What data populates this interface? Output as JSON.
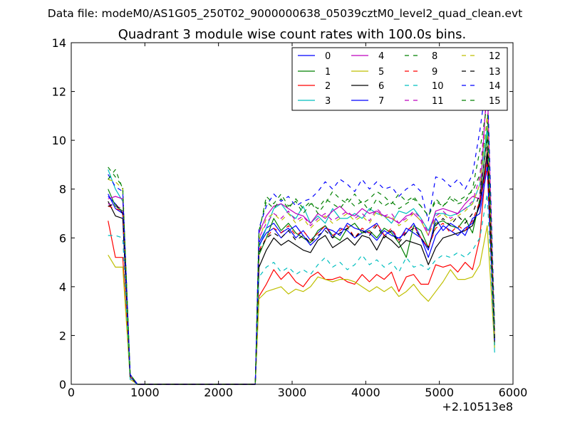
{
  "header": {
    "datafile": "Data file: modeM0/AS1G05_250T02_9000000638_05039cztM0_level2_quad_clean.evt",
    "title": "Quadrant 3 module wise count rates with 100.0s bins."
  },
  "chart_data": {
    "type": "line",
    "title": "Quadrant 3 module wise count rates with 100.0s bins.",
    "xlabel": "",
    "ylabel": "",
    "x_offset_label": "+2.10513e8",
    "xlim": [
      0,
      6000
    ],
    "ylim": [
      0,
      14
    ],
    "xticks": [
      0,
      1000,
      2000,
      3000,
      4000,
      5000,
      6000
    ],
    "yticks": [
      0,
      2,
      4,
      6,
      8,
      10,
      12,
      14
    ],
    "xtick_labels": [
      "0",
      "1000",
      "2000",
      "3000",
      "4000",
      "5000",
      "6000"
    ],
    "ytick_labels": [
      "0",
      "2",
      "4",
      "6",
      "8",
      "10",
      "12",
      "14"
    ],
    "grid": false,
    "legend": "top-right",
    "x": [
      500,
      600,
      700,
      800,
      900,
      1000,
      1100,
      1200,
      1300,
      1400,
      1500,
      1600,
      1700,
      1800,
      1900,
      2000,
      2100,
      2200,
      2300,
      2400,
      2500,
      2550,
      2650,
      2750,
      2850,
      2950,
      3050,
      3150,
      3250,
      3350,
      3450,
      3550,
      3650,
      3750,
      3850,
      3950,
      4050,
      4150,
      4250,
      4350,
      4450,
      4550,
      4650,
      4750,
      4850,
      4950,
      5050,
      5150,
      5250,
      5350,
      5450,
      5550,
      5650,
      5750
    ],
    "series": [
      {
        "name": "0",
        "color": "#0000ff",
        "dash": false,
        "values": [
          7.7,
          7.4,
          7.0,
          0.4,
          0,
          0,
          0,
          0,
          0,
          0,
          0,
          0,
          0,
          0,
          0,
          0,
          0,
          0,
          0,
          0,
          0,
          5.8,
          6.4,
          6.6,
          6.2,
          6.4,
          6.0,
          6.3,
          5.9,
          6.2,
          6.5,
          6.0,
          6.4,
          6.3,
          6.0,
          6.2,
          6.4,
          6.6,
          6.1,
          6.3,
          5.9,
          6.4,
          6.2,
          6.0,
          5.2,
          6.1,
          6.5,
          6.3,
          6.1,
          6.4,
          6.6,
          7.3,
          9.2,
          1.8
        ]
      },
      {
        "name": "1",
        "color": "#008000",
        "dash": false,
        "values": [
          8.0,
          7.3,
          7.1,
          0.3,
          0,
          0,
          0,
          0,
          0,
          0,
          0,
          0,
          0,
          0,
          0,
          0,
          0,
          0,
          0,
          0,
          0,
          5.3,
          6.0,
          6.8,
          6.3,
          6.6,
          6.2,
          6.0,
          5.8,
          6.3,
          6.5,
          6.1,
          5.9,
          6.4,
          6.6,
          6.2,
          6.3,
          6.0,
          6.4,
          6.2,
          5.8,
          5.2,
          6.5,
          6.3,
          5.6,
          6.6,
          6.7,
          6.5,
          6.4,
          6.8,
          6.2,
          7.6,
          10.2,
          1.9
        ]
      },
      {
        "name": "2",
        "color": "#ff0000",
        "dash": false,
        "values": [
          6.7,
          5.2,
          5.2,
          0.3,
          0,
          0,
          0,
          0,
          0,
          0,
          0,
          0,
          0,
          0,
          0,
          0,
          0,
          0,
          0,
          0,
          0,
          3.6,
          4.1,
          4.7,
          4.3,
          4.6,
          4.2,
          4.0,
          4.4,
          4.6,
          4.3,
          4.3,
          4.4,
          4.2,
          4.1,
          4.5,
          4.2,
          4.5,
          4.3,
          4.6,
          3.8,
          4.4,
          4.5,
          4.1,
          4.1,
          4.9,
          4.8,
          4.9,
          4.6,
          5.0,
          4.7,
          6.0,
          9.6,
          1.6
        ]
      },
      {
        "name": "3",
        "color": "#00bfbf",
        "dash": false,
        "values": [
          8.8,
          8.0,
          7.5,
          0.4,
          0,
          0,
          0,
          0,
          0,
          0,
          0,
          0,
          0,
          0,
          0,
          0,
          0,
          0,
          0,
          0,
          0,
          5.6,
          6.4,
          7.2,
          7.4,
          7.0,
          6.8,
          7.3,
          6.6,
          6.9,
          6.6,
          7.2,
          6.8,
          6.8,
          7.0,
          6.8,
          7.2,
          7.0,
          6.9,
          6.6,
          7.1,
          7.0,
          7.2,
          6.8,
          6.3,
          7.0,
          7.0,
          6.9,
          7.0,
          7.2,
          7.4,
          8.2,
          10.5,
          1.3
        ]
      },
      {
        "name": "4",
        "color": "#bf00bf",
        "dash": false,
        "values": [
          7.6,
          7.7,
          7.6,
          0.4,
          0,
          0,
          0,
          0,
          0,
          0,
          0,
          0,
          0,
          0,
          0,
          0,
          0,
          0,
          0,
          0,
          0,
          6.2,
          6.9,
          7.3,
          7.4,
          7.2,
          7.0,
          6.9,
          6.6,
          7.0,
          6.8,
          7.1,
          7.3,
          7.0,
          6.9,
          7.2,
          7.0,
          7.1,
          6.9,
          6.8,
          6.6,
          6.9,
          7.0,
          6.7,
          6.1,
          7.1,
          7.2,
          7.1,
          7.0,
          7.4,
          7.7,
          7.6,
          12.4,
          2.0
        ]
      },
      {
        "name": "5",
        "color": "#bfbf00",
        "dash": false,
        "values": [
          5.3,
          4.8,
          4.8,
          0.2,
          0,
          0,
          0,
          0,
          0,
          0,
          0,
          0,
          0,
          0,
          0,
          0,
          0,
          0,
          0,
          0,
          0,
          3.5,
          3.8,
          3.9,
          4.0,
          3.7,
          3.9,
          3.8,
          4.0,
          4.4,
          4.3,
          4.2,
          4.3,
          4.3,
          4.2,
          4.0,
          3.8,
          4.0,
          3.8,
          4.0,
          3.6,
          3.8,
          4.1,
          3.7,
          3.4,
          3.8,
          4.2,
          4.7,
          4.3,
          4.3,
          4.4,
          4.9,
          6.5,
          1.5
        ]
      },
      {
        "name": "6",
        "color": "#000000",
        "dash": false,
        "values": [
          7.5,
          6.9,
          6.8,
          0.3,
          0,
          0,
          0,
          0,
          0,
          0,
          0,
          0,
          0,
          0,
          0,
          0,
          0,
          0,
          0,
          0,
          0,
          4.8,
          5.5,
          6.0,
          5.7,
          5.9,
          5.7,
          5.5,
          5.4,
          5.9,
          6.1,
          5.6,
          5.8,
          6.0,
          5.7,
          6.1,
          6.0,
          5.5,
          6.1,
          5.9,
          5.6,
          5.9,
          5.8,
          5.7,
          4.9,
          5.6,
          6.0,
          6.1,
          6.2,
          6.3,
          6.5,
          7.4,
          9.5,
          1.7
        ]
      },
      {
        "name": "7",
        "color": "#0000ff",
        "dash": false,
        "values": [
          7.8,
          7.2,
          7.0,
          0.3,
          0,
          0,
          0,
          0,
          0,
          0,
          0,
          0,
          0,
          0,
          0,
          0,
          0,
          0,
          0,
          0,
          0,
          5.7,
          6.2,
          6.4,
          6.0,
          6.3,
          6.5,
          6.1,
          5.7,
          6.0,
          6.4,
          6.3,
          6.1,
          6.6,
          6.4,
          6.3,
          6.2,
          5.9,
          6.3,
          6.1,
          6.0,
          6.2,
          6.6,
          6.0,
          5.5,
          6.8,
          6.3,
          6.6,
          6.4,
          6.1,
          6.8,
          7.0,
          8.9,
          1.8
        ]
      },
      {
        "name": "8",
        "color": "#008000",
        "dash": true,
        "values": [
          8.9,
          8.5,
          8.1,
          0.4,
          0,
          0,
          0,
          0,
          0,
          0,
          0,
          0,
          0,
          0,
          0,
          0,
          0,
          0,
          0,
          0,
          0,
          6.3,
          7.5,
          7.2,
          7.6,
          7.2,
          7.6,
          7.2,
          7.5,
          7.0,
          7.4,
          7.9,
          7.6,
          7.4,
          7.8,
          7.4,
          7.6,
          7.9,
          7.7,
          7.4,
          7.8,
          7.5,
          7.7,
          7.3,
          6.9,
          7.6,
          7.3,
          7.7,
          7.5,
          7.7,
          7.9,
          8.6,
          10.8,
          2.1
        ]
      },
      {
        "name": "9",
        "color": "#ff0000",
        "dash": true,
        "values": [
          7.3,
          7.2,
          7.1,
          0.3,
          0,
          0,
          0,
          0,
          0,
          0,
          0,
          0,
          0,
          0,
          0,
          0,
          0,
          0,
          0,
          0,
          0,
          5.5,
          6.0,
          6.4,
          6.2,
          6.5,
          6.1,
          6.3,
          5.9,
          6.2,
          6.5,
          6.1,
          6.3,
          6.5,
          6.0,
          6.4,
          6.2,
          6.6,
          6.1,
          6.4,
          5.9,
          6.3,
          6.5,
          6.0,
          5.6,
          6.4,
          6.6,
          6.2,
          6.5,
          6.3,
          6.7,
          7.5,
          9.0,
          1.7
        ]
      },
      {
        "name": "10",
        "color": "#00bfbf",
        "dash": true,
        "values": [
          6.1,
          6.1,
          6.0,
          0.2,
          0,
          0,
          0,
          0,
          0,
          0,
          0,
          0,
          0,
          0,
          0,
          0,
          0,
          0,
          0,
          0,
          0,
          4.4,
          4.8,
          5.0,
          4.6,
          4.8,
          4.5,
          4.7,
          4.5,
          4.9,
          5.2,
          4.8,
          5.0,
          4.7,
          4.9,
          5.3,
          4.9,
          5.1,
          4.8,
          5.0,
          4.6,
          5.2,
          4.8,
          4.9,
          4.7,
          5.1,
          5.3,
          5.2,
          5.4,
          5.2,
          5.5,
          6.0,
          7.8,
          1.6
        ]
      },
      {
        "name": "11",
        "color": "#bf00bf",
        "dash": true,
        "values": [
          7.4,
          7.3,
          7.2,
          0.3,
          0,
          0,
          0,
          0,
          0,
          0,
          0,
          0,
          0,
          0,
          0,
          0,
          0,
          0,
          0,
          0,
          0,
          6.0,
          6.6,
          7.0,
          6.8,
          7.1,
          6.7,
          6.9,
          6.5,
          6.8,
          7.0,
          6.7,
          6.9,
          7.1,
          6.8,
          7.0,
          6.7,
          7.2,
          6.9,
          7.0,
          6.6,
          6.8,
          7.1,
          6.8,
          6.2,
          6.9,
          7.1,
          6.8,
          7.0,
          7.2,
          7.5,
          8.5,
          12.0,
          2.0
        ]
      },
      {
        "name": "12",
        "color": "#bfbf00",
        "dash": true,
        "values": [
          8.4,
          8.3,
          8.0,
          0.4,
          0,
          0,
          0,
          0,
          0,
          0,
          0,
          0,
          0,
          0,
          0,
          0,
          0,
          0,
          0,
          0,
          0,
          5.9,
          6.8,
          7.0,
          6.7,
          7.0,
          6.6,
          6.8,
          6.4,
          6.7,
          6.9,
          6.6,
          6.8,
          7.0,
          6.7,
          6.9,
          6.6,
          7.1,
          6.8,
          6.9,
          6.5,
          6.7,
          7.0,
          6.7,
          6.1,
          6.8,
          7.0,
          6.7,
          6.9,
          7.1,
          7.4,
          8.2,
          11.0,
          1.9
        ]
      },
      {
        "name": "13",
        "color": "#000000",
        "dash": true,
        "values": [
          7.3,
          7.4,
          7.0,
          0.3,
          0,
          0,
          0,
          0,
          0,
          0,
          0,
          0,
          0,
          0,
          0,
          0,
          0,
          0,
          0,
          0,
          0,
          5.4,
          6.0,
          6.2,
          6.0,
          6.3,
          5.9,
          6.1,
          5.8,
          6.1,
          6.3,
          6.0,
          6.2,
          6.4,
          6.0,
          6.3,
          6.1,
          6.5,
          6.0,
          6.3,
          5.8,
          6.2,
          6.4,
          6.0,
          5.6,
          6.5,
          6.8,
          6.5,
          6.9,
          6.6,
          7.0,
          7.8,
          10.0,
          1.8
        ]
      },
      {
        "name": "14",
        "color": "#0000ff",
        "dash": true,
        "values": [
          8.6,
          8.1,
          7.9,
          0.4,
          0,
          0,
          0,
          0,
          0,
          0,
          0,
          0,
          0,
          0,
          0,
          0,
          0,
          0,
          0,
          0,
          0,
          6.4,
          7.3,
          7.8,
          7.5,
          7.7,
          7.3,
          7.5,
          7.6,
          7.9,
          8.3,
          8.0,
          8.4,
          8.2,
          7.9,
          8.4,
          8.0,
          8.3,
          8.0,
          8.1,
          7.7,
          8.0,
          8.2,
          7.9,
          6.7,
          8.5,
          8.4,
          8.1,
          8.4,
          8.0,
          8.6,
          10.4,
          12.6,
          2.4
        ]
      },
      {
        "name": "15",
        "color": "#008000",
        "dash": true,
        "values": [
          8.4,
          8.8,
          8.0,
          0.4,
          0,
          0,
          0,
          0,
          0,
          0,
          0,
          0,
          0,
          0,
          0,
          0,
          0,
          0,
          0,
          0,
          0,
          6.2,
          7.7,
          7.4,
          7.8,
          7.3,
          7.5,
          7.0,
          7.4,
          7.2,
          7.6,
          7.4,
          7.2,
          7.6,
          7.3,
          7.5,
          7.1,
          7.6,
          7.3,
          7.5,
          7.2,
          7.4,
          7.6,
          7.3,
          6.9,
          7.5,
          7.3,
          7.6,
          7.4,
          7.5,
          8.0,
          9.6,
          11.5,
          2.2
        ]
      }
    ]
  }
}
